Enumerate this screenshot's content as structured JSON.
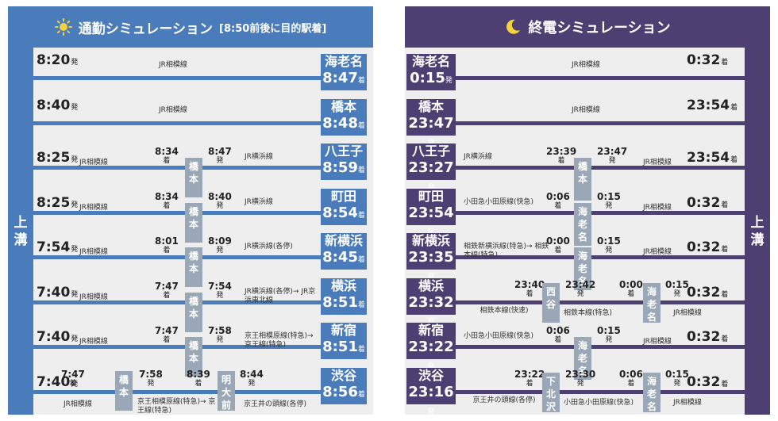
{
  "commute": {
    "title": "通勤シミュレーション",
    "note": "[8:50前後に目的駅着]",
    "side_label": "上溝",
    "colors": {
      "primary": "#4a7cbc",
      "transfer": "#9aa7b6"
    },
    "labels": {
      "dep": "発",
      "arr": "着"
    },
    "rows": [
      {
        "dep": "8:20",
        "segments": [
          {
            "line": "JR相模線"
          }
        ],
        "transfers": [],
        "dest": "海老名",
        "arr": "8:47"
      },
      {
        "dep": "8:40",
        "segments": [
          {
            "line": "JR相模線"
          }
        ],
        "transfers": [],
        "dest": "橋本",
        "arr": "8:48"
      },
      {
        "dep": "8:25",
        "segments": [
          {
            "line": "JR相模線"
          },
          {
            "line": "JR横浜線"
          }
        ],
        "transfers": [
          {
            "station": "橋本",
            "arr": "8:34",
            "dep": "8:47"
          }
        ],
        "dest": "八王子",
        "arr": "8:59"
      },
      {
        "dep": "8:25",
        "segments": [
          {
            "line": "JR相模線"
          },
          {
            "line": "JR横浜線"
          }
        ],
        "transfers": [
          {
            "station": "橋本",
            "arr": "8:34",
            "dep": "8:40"
          }
        ],
        "dest": "町田",
        "arr": "8:54"
      },
      {
        "dep": "7:54",
        "segments": [
          {
            "line": "JR相模線"
          },
          {
            "line": "JR横浜線(各停)"
          }
        ],
        "transfers": [
          {
            "station": "橋本",
            "arr": "8:01",
            "dep": "8:09"
          }
        ],
        "dest": "新横浜",
        "arr": "8:45"
      },
      {
        "dep": "7:40",
        "segments": [
          {
            "line": "JR相模線"
          },
          {
            "line": "JR横浜線(各停)→ JR京浜東北線"
          }
        ],
        "transfers": [
          {
            "station": "橋本",
            "arr": "7:47",
            "dep": "7:54"
          }
        ],
        "dest": "横浜",
        "arr": "8:51"
      },
      {
        "dep": "7:40",
        "segments": [
          {
            "line": "JR相模線"
          },
          {
            "line": "京王相模原線(特急)→ 京王線(特急)"
          }
        ],
        "transfers": [
          {
            "station": "橋本",
            "arr": "7:47",
            "dep": "7:58"
          }
        ],
        "dest": "新宿",
        "arr": "8:51"
      },
      {
        "dep": "7:40",
        "segments": [
          {
            "line": "JR相模線"
          },
          {
            "line": "京王相模原線(特急)→ 京王線(特急)"
          },
          {
            "line": "京王井の頭線(各停)"
          }
        ],
        "transfers": [
          {
            "station": "橋本",
            "arr": "7:47",
            "dep": "7:58"
          },
          {
            "station": "明大前",
            "arr": "8:39",
            "dep": "8:44"
          }
        ],
        "dest": "渋谷",
        "arr": "8:56"
      }
    ]
  },
  "last_train": {
    "title": "終電シミュレーション",
    "side_label": "上溝",
    "colors": {
      "primary": "#4e3f73",
      "transfer": "#9aa7b6"
    },
    "labels": {
      "dep": "発",
      "arr": "着"
    },
    "rows": [
      {
        "origin": "海老名",
        "dep": "0:15",
        "segments": [
          {
            "line": "JR相模線"
          }
        ],
        "transfers": [],
        "arr": "0:32"
      },
      {
        "origin": "橋本",
        "dep": "23:47",
        "segments": [
          {
            "line": "JR相模線"
          }
        ],
        "transfers": [],
        "arr": "23:54"
      },
      {
        "origin": "八王子",
        "dep": "23:27",
        "segments": [
          {
            "line": "JR横浜線"
          },
          {
            "line": "JR相模線"
          }
        ],
        "transfers": [
          {
            "station": "橋本",
            "arr": "23:39",
            "dep": "23:47"
          }
        ],
        "arr": "23:54"
      },
      {
        "origin": "町田",
        "dep": "23:54",
        "segments": [
          {
            "line": "小田急小田原線(快急)"
          },
          {
            "line": "JR相模線"
          }
        ],
        "transfers": [
          {
            "station": "海老名",
            "arr": "0:06",
            "dep": "0:15"
          }
        ],
        "arr": "0:32"
      },
      {
        "origin": "新横浜",
        "dep": "23:35",
        "segments": [
          {
            "line": "相鉄新横浜線(特急)→ 相鉄本線(特急)"
          },
          {
            "line": "JR相模線"
          }
        ],
        "transfers": [
          {
            "station": "海老名",
            "arr": "0:00",
            "dep": "0:15"
          }
        ],
        "arr": "0:32"
      },
      {
        "origin": "横浜",
        "dep": "23:32",
        "segments": [
          {
            "line": "相鉄本線(快速)"
          },
          {
            "line": "相鉄本線(特急)"
          },
          {
            "line": "JR相模線"
          }
        ],
        "transfers": [
          {
            "station": "西谷",
            "arr": "23:40",
            "dep": "23:42"
          },
          {
            "station": "海老名",
            "arr": "0:00",
            "dep": "0:15"
          }
        ],
        "arr": "0:32"
      },
      {
        "origin": "新宿",
        "dep": "23:22",
        "segments": [
          {
            "line": "小田急小田原線(快急)"
          },
          {
            "line": "JR相模線"
          }
        ],
        "transfers": [
          {
            "station": "海老名",
            "arr": "0:06",
            "dep": "0:15"
          }
        ],
        "arr": "0:32"
      },
      {
        "origin": "渋谷",
        "dep": "23:16",
        "segments": [
          {
            "line": "京王井の頭線(各停)"
          },
          {
            "line": "小田急小田原線(快急)"
          },
          {
            "line": "JR相模線"
          }
        ],
        "transfers": [
          {
            "station": "下北沢",
            "arr": "23:22",
            "dep": "23:30"
          },
          {
            "station": "海老名",
            "arr": "0:06",
            "dep": "0:15"
          }
        ],
        "arr": "0:32"
      }
    ]
  }
}
